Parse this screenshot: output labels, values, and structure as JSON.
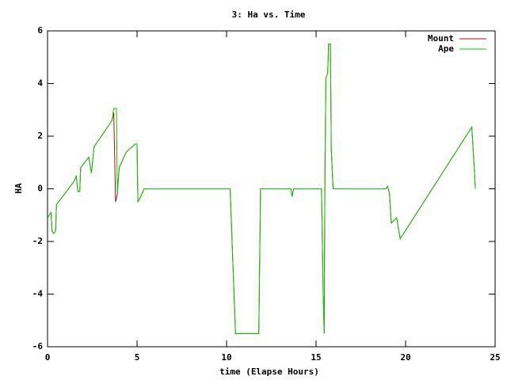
{
  "chart_data": {
    "type": "line",
    "title": "3: Ha vs. Time",
    "x_label": "time (Elapse Hours)",
    "y_label": "HA",
    "xlim": [
      0,
      25
    ],
    "ylim": [
      -6,
      6
    ],
    "xticks": [
      0,
      5,
      10,
      15,
      20,
      25
    ],
    "yticks": [
      -6,
      -4,
      -2,
      0,
      2,
      4,
      6
    ],
    "legend": "top-right",
    "series": [
      {
        "name": "Mount",
        "color": "#cc0000",
        "x": [
          0,
          0.2,
          0.25,
          0.35,
          0.45,
          0.5,
          1.5,
          1.6,
          1.7,
          1.8,
          1.85,
          2.3,
          2.45,
          2.6,
          3.6,
          3.7,
          3.8,
          3.9,
          4.0,
          4.4,
          4.9,
          5.0,
          5.05,
          5.2,
          5.4,
          10.2,
          10.5,
          11.8,
          11.9,
          13.6,
          13.65,
          13.75,
          15.3,
          15.4,
          15.45,
          15.5,
          15.55,
          15.65,
          15.7,
          15.8,
          15.85,
          15.95,
          18.9,
          19.0,
          19.1,
          19.2,
          19.5,
          19.7,
          23.7,
          23.9
        ],
        "values": [
          -1.1,
          -0.9,
          -1.6,
          -1.7,
          -1.6,
          -0.6,
          0.3,
          0.5,
          -0.1,
          -0.1,
          0.8,
          1.2,
          0.6,
          1.6,
          2.6,
          2.9,
          -0.5,
          -0.2,
          0.8,
          1.4,
          1.7,
          1.7,
          -0.5,
          -0.3,
          0,
          0,
          -5.5,
          -5.5,
          0,
          0,
          -0.3,
          0,
          0,
          -4.0,
          -5.5,
          1.0,
          4.2,
          4.4,
          5.5,
          5.5,
          1.5,
          0,
          0,
          0.1,
          -0.2,
          -1.3,
          -1.1,
          -1.9,
          2.35,
          0
        ]
      },
      {
        "name": "Ape",
        "color": "#00cc00",
        "x": [
          0,
          0.2,
          0.25,
          0.35,
          0.45,
          0.5,
          1.5,
          1.6,
          1.7,
          1.8,
          1.85,
          2.3,
          2.45,
          2.6,
          3.6,
          3.7,
          3.85,
          3.9,
          4.0,
          4.4,
          4.9,
          5.0,
          5.05,
          5.2,
          5.4,
          10.2,
          10.5,
          11.8,
          11.9,
          13.6,
          13.65,
          13.75,
          15.3,
          15.4,
          15.45,
          15.5,
          15.55,
          15.65,
          15.7,
          15.8,
          15.85,
          15.95,
          18.9,
          19.0,
          19.1,
          19.2,
          19.5,
          19.7,
          23.7,
          23.9
        ],
        "values": [
          -1.1,
          -0.9,
          -1.6,
          -1.7,
          -1.6,
          -0.6,
          0.3,
          0.5,
          -0.1,
          -0.1,
          0.8,
          1.2,
          0.6,
          1.6,
          2.6,
          3.05,
          3.05,
          -0.2,
          0.8,
          1.4,
          1.7,
          1.7,
          -0.5,
          -0.3,
          0,
          0,
          -5.5,
          -5.5,
          0,
          0,
          -0.3,
          0,
          0,
          -4.0,
          -5.5,
          1.0,
          4.2,
          4.4,
          5.5,
          5.5,
          1.5,
          0,
          0,
          0.1,
          -0.2,
          -1.3,
          -1.1,
          -1.9,
          2.35,
          0
        ]
      }
    ]
  }
}
